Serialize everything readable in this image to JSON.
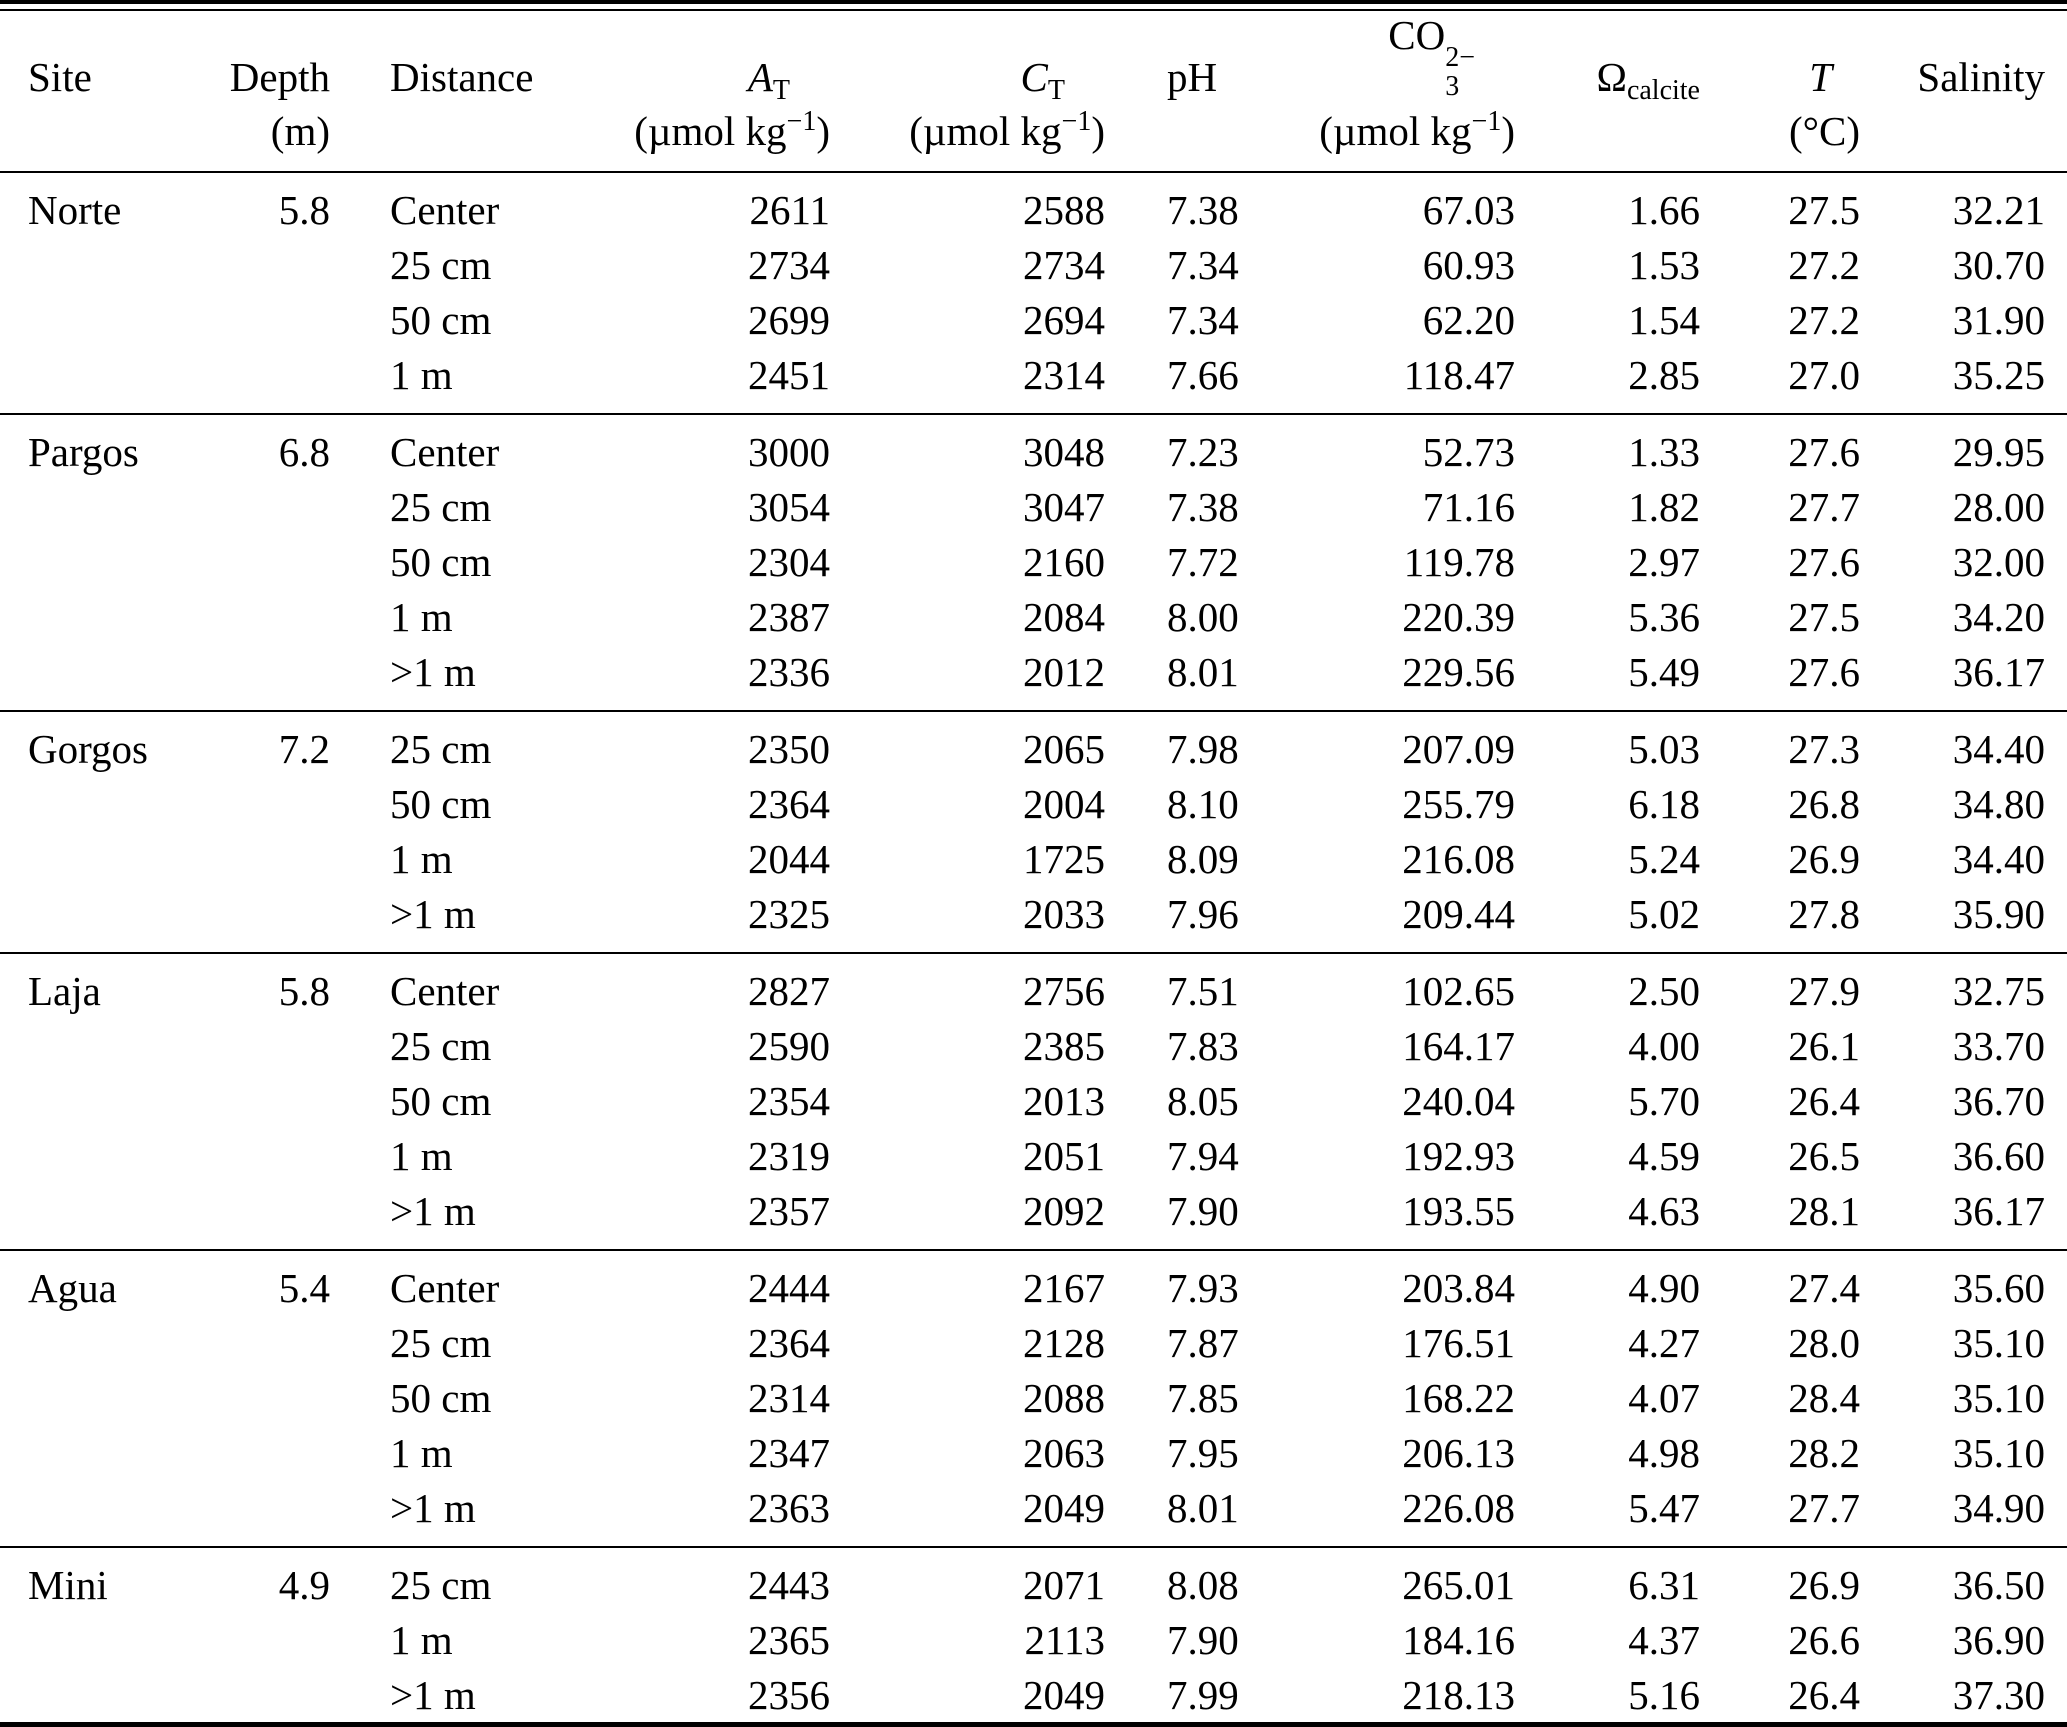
{
  "chart_data": {
    "type": "table",
    "header": {
      "site": {
        "label": "Site"
      },
      "depth": {
        "label": "Depth",
        "unit": "(m)"
      },
      "distance": {
        "label": "Distance"
      },
      "at": {
        "base": "A",
        "sub": "T",
        "unit_pre": "(µmol kg",
        "unit_sup": "−1",
        "unit_post": ")"
      },
      "ct": {
        "base": "C",
        "sub": "T",
        "unit_pre": "(µmol kg",
        "unit_sup": "−1",
        "unit_post": ")"
      },
      "ph": {
        "label": "pH"
      },
      "co3": {
        "base": "CO",
        "sup": "2−",
        "sub": "3",
        "unit_pre": "(µmol kg",
        "unit_sup": "−1",
        "unit_post": ")"
      },
      "omega": {
        "base": "Ω",
        "sub": "calcite"
      },
      "t": {
        "label": "T",
        "unit": "(°C)"
      },
      "salinity": {
        "label": "Salinity"
      }
    },
    "groups": [
      {
        "site": "Norte",
        "depth": "5.8",
        "rows": [
          {
            "distance": "Center",
            "at": "2611",
            "ct": "2588",
            "ph": "7.38",
            "co3": "67.03",
            "omega": "1.66",
            "t": "27.5",
            "salinity": "32.21"
          },
          {
            "distance": "25 cm",
            "at": "2734",
            "ct": "2734",
            "ph": "7.34",
            "co3": "60.93",
            "omega": "1.53",
            "t": "27.2",
            "salinity": "30.70"
          },
          {
            "distance": "50 cm",
            "at": "2699",
            "ct": "2694",
            "ph": "7.34",
            "co3": "62.20",
            "omega": "1.54",
            "t": "27.2",
            "salinity": "31.90"
          },
          {
            "distance": "1 m",
            "at": "2451",
            "ct": "2314",
            "ph": "7.66",
            "co3": "118.47",
            "omega": "2.85",
            "t": "27.0",
            "salinity": "35.25"
          }
        ]
      },
      {
        "site": "Pargos",
        "depth": "6.8",
        "rows": [
          {
            "distance": "Center",
            "at": "3000",
            "ct": "3048",
            "ph": "7.23",
            "co3": "52.73",
            "omega": "1.33",
            "t": "27.6",
            "salinity": "29.95"
          },
          {
            "distance": "25 cm",
            "at": "3054",
            "ct": "3047",
            "ph": "7.38",
            "co3": "71.16",
            "omega": "1.82",
            "t": "27.7",
            "salinity": "28.00"
          },
          {
            "distance": "50 cm",
            "at": "2304",
            "ct": "2160",
            "ph": "7.72",
            "co3": "119.78",
            "omega": "2.97",
            "t": "27.6",
            "salinity": "32.00"
          },
          {
            "distance": "1 m",
            "at": "2387",
            "ct": "2084",
            "ph": "8.00",
            "co3": "220.39",
            "omega": "5.36",
            "t": "27.5",
            "salinity": "34.20"
          },
          {
            "distance": ">1 m",
            "at": "2336",
            "ct": "2012",
            "ph": "8.01",
            "co3": "229.56",
            "omega": "5.49",
            "t": "27.6",
            "salinity": "36.17"
          }
        ]
      },
      {
        "site": "Gorgos",
        "depth": "7.2",
        "rows": [
          {
            "distance": "25 cm",
            "at": "2350",
            "ct": "2065",
            "ph": "7.98",
            "co3": "207.09",
            "omega": "5.03",
            "t": "27.3",
            "salinity": "34.40"
          },
          {
            "distance": "50 cm",
            "at": "2364",
            "ct": "2004",
            "ph": "8.10",
            "co3": "255.79",
            "omega": "6.18",
            "t": "26.8",
            "salinity": "34.80"
          },
          {
            "distance": "1 m",
            "at": "2044",
            "ct": "1725",
            "ph": "8.09",
            "co3": "216.08",
            "omega": "5.24",
            "t": "26.9",
            "salinity": "34.40"
          },
          {
            "distance": ">1 m",
            "at": "2325",
            "ct": "2033",
            "ph": "7.96",
            "co3": "209.44",
            "omega": "5.02",
            "t": "27.8",
            "salinity": "35.90"
          }
        ]
      },
      {
        "site": "Laja",
        "depth": "5.8",
        "rows": [
          {
            "distance": "Center",
            "at": "2827",
            "ct": "2756",
            "ph": "7.51",
            "co3": "102.65",
            "omega": "2.50",
            "t": "27.9",
            "salinity": "32.75"
          },
          {
            "distance": "25 cm",
            "at": "2590",
            "ct": "2385",
            "ph": "7.83",
            "co3": "164.17",
            "omega": "4.00",
            "t": "26.1",
            "salinity": "33.70"
          },
          {
            "distance": "50 cm",
            "at": "2354",
            "ct": "2013",
            "ph": "8.05",
            "co3": "240.04",
            "omega": "5.70",
            "t": "26.4",
            "salinity": "36.70"
          },
          {
            "distance": "1 m",
            "at": "2319",
            "ct": "2051",
            "ph": "7.94",
            "co3": "192.93",
            "omega": "4.59",
            "t": "26.5",
            "salinity": "36.60"
          },
          {
            "distance": ">1 m",
            "at": "2357",
            "ct": "2092",
            "ph": "7.90",
            "co3": "193.55",
            "omega": "4.63",
            "t": "28.1",
            "salinity": "36.17"
          }
        ]
      },
      {
        "site": "Agua",
        "depth": "5.4",
        "rows": [
          {
            "distance": "Center",
            "at": "2444",
            "ct": "2167",
            "ph": "7.93",
            "co3": "203.84",
            "omega": "4.90",
            "t": "27.4",
            "salinity": "35.60"
          },
          {
            "distance": "25 cm",
            "at": "2364",
            "ct": "2128",
            "ph": "7.87",
            "co3": "176.51",
            "omega": "4.27",
            "t": "28.0",
            "salinity": "35.10"
          },
          {
            "distance": "50 cm",
            "at": "2314",
            "ct": "2088",
            "ph": "7.85",
            "co3": "168.22",
            "omega": "4.07",
            "t": "28.4",
            "salinity": "35.10"
          },
          {
            "distance": "1 m",
            "at": "2347",
            "ct": "2063",
            "ph": "7.95",
            "co3": "206.13",
            "omega": "4.98",
            "t": "28.2",
            "salinity": "35.10"
          },
          {
            "distance": ">1 m",
            "at": "2363",
            "ct": "2049",
            "ph": "8.01",
            "co3": "226.08",
            "omega": "5.47",
            "t": "27.7",
            "salinity": "34.90"
          }
        ]
      },
      {
        "site": "Mini",
        "depth": "4.9",
        "rows": [
          {
            "distance": "25 cm",
            "at": "2443",
            "ct": "2071",
            "ph": "8.08",
            "co3": "265.01",
            "omega": "6.31",
            "t": "26.9",
            "salinity": "36.50"
          },
          {
            "distance": "1 m",
            "at": "2365",
            "ct": "2113",
            "ph": "7.90",
            "co3": "184.16",
            "omega": "4.37",
            "t": "26.6",
            "salinity": "36.90"
          },
          {
            "distance": ">1 m",
            "at": "2356",
            "ct": "2049",
            "ph": "7.99",
            "co3": "218.13",
            "omega": "5.16",
            "t": "26.4",
            "salinity": "37.30"
          }
        ]
      }
    ]
  }
}
